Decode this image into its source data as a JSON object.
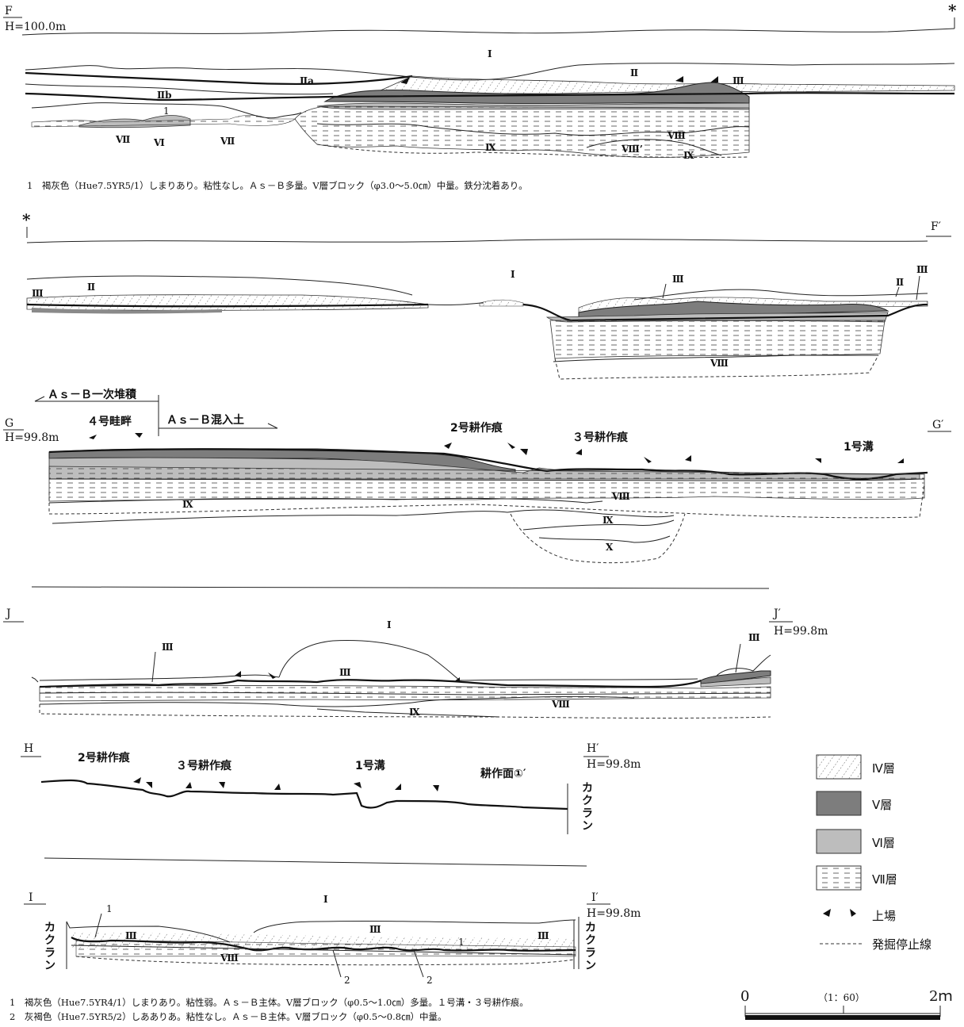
{
  "sections": {
    "F": {
      "start": "F",
      "end": "F′",
      "height": "H=100.0m",
      "break_mark": "*"
    },
    "G": {
      "start": "G",
      "end": "G′",
      "height": "H=99.8m"
    },
    "J": {
      "start": "J",
      "end": "J′",
      "height": "H=99.8m"
    },
    "H": {
      "start": "H",
      "end": "H′",
      "height": "H=99.8m"
    },
    "I": {
      "start": "I",
      "end": "I′",
      "height": "H=99.8m"
    }
  },
  "layers": {
    "I": "I",
    "IIa": "Ⅱa",
    "IIb": "Ⅱb",
    "II": "Ⅱ",
    "III": "Ⅲ",
    "VI": "Ⅵ",
    "VII": "Ⅶ",
    "VIII": "Ⅷ",
    "VIIIp": "Ⅷ’",
    "IX": "Ⅸ",
    "X": "X"
  },
  "labels": {
    "asb_primary": "Ａｓ－Ｂ一次堆積",
    "asb_mixed": "Ａｓ－Ｂ混入土",
    "ridge4": "４号畦畔",
    "plow2": "2号耕作痕",
    "plow3": "３号耕作痕",
    "ditch1": "1号溝",
    "plow_surface": "耕作面①′",
    "kakuran": "カクラン",
    "num1": "1",
    "num2": "2"
  },
  "notes": {
    "f1": "1　褐灰色（Hue7.5YR5/1）しまりあり。粘性なし。Ａｓ－Ｂ多量。Ⅴ層ブロック（φ3.0～5.0㎝）中量。鉄分沈着あり。",
    "i1": "1　褐灰色（Hue7.5YR4/1）しまりあり。粘性弱。Ａｓ－Ｂ主体。Ⅴ層ブロック（φ0.5～1.0㎝）多量。１号溝・３号耕作痕。",
    "i2": "2　灰褐色（Hue7.5YR5/2）しあありあ。粘性なし。Ａｓ－Ｂ主体。Ⅴ層ブロック（φ0.5～0.8㎝）中量。"
  },
  "legend": [
    {
      "label": "Ⅳ層",
      "pattern": "hatch"
    },
    {
      "label": "Ⅴ層",
      "color": "#7d7d7d"
    },
    {
      "label": "Ⅵ層",
      "color": "#bdbdbd"
    },
    {
      "label": "Ⅶ層",
      "pattern": "dash"
    },
    {
      "label": "上場",
      "pattern": "arrows"
    },
    {
      "label": "発掘停止線",
      "pattern": "dashed-line"
    }
  ],
  "scale": {
    "zero": "0",
    "ratio": "（1：60）",
    "max": "2ｍ"
  },
  "colors": {
    "layerV": "#7d7d7d",
    "layerVI": "#bdbdbd",
    "line": "#222222"
  }
}
